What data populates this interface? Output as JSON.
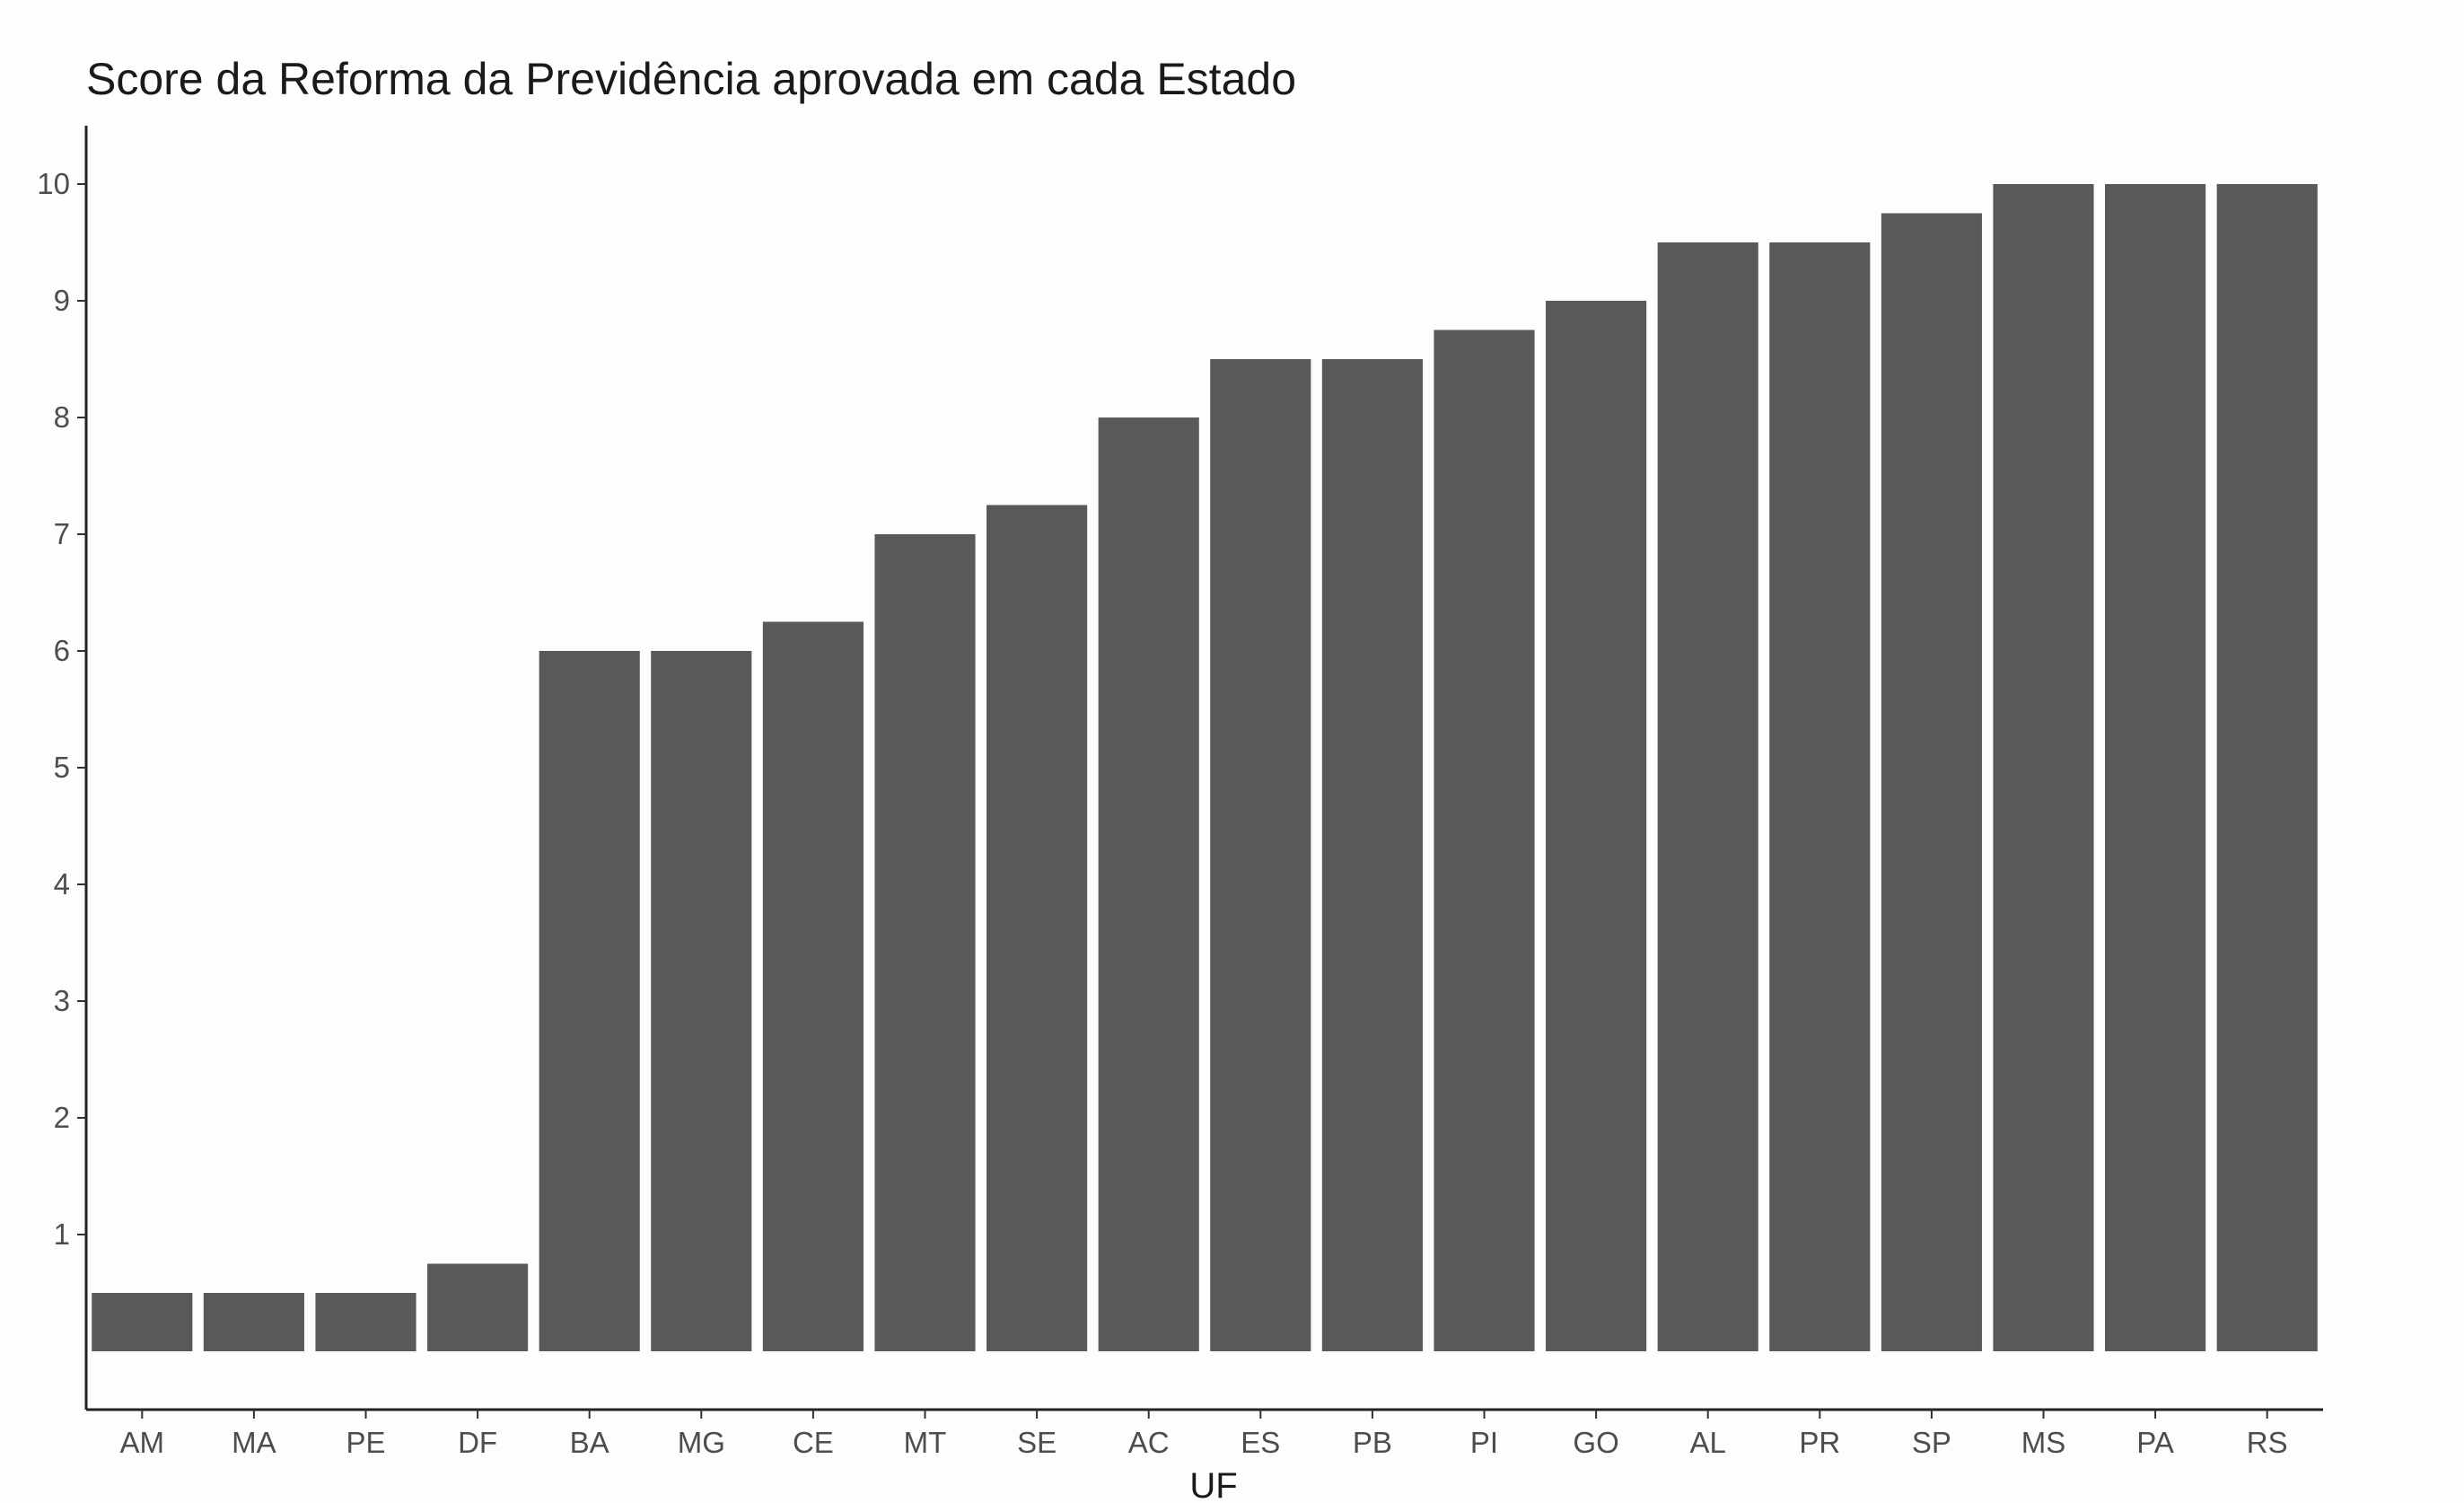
{
  "chart_data": {
    "type": "bar",
    "title": "Score da Reforma da Previdência aprovada em cada Estado",
    "xlabel": "UF",
    "ylabel": "",
    "categories": [
      "AM",
      "MA",
      "PE",
      "DF",
      "BA",
      "MG",
      "CE",
      "MT",
      "SE",
      "AC",
      "ES",
      "PB",
      "PI",
      "GO",
      "AL",
      "PR",
      "SP",
      "MS",
      "PA",
      "RS"
    ],
    "values": [
      0.5,
      0.5,
      0.5,
      0.75,
      6,
      6,
      6.25,
      7,
      7.25,
      8,
      8.5,
      8.5,
      8.75,
      9,
      9.5,
      9.5,
      9.75,
      10,
      10,
      10
    ],
    "yticks": [
      1,
      2,
      3,
      4,
      5,
      6,
      7,
      8,
      9,
      10
    ],
    "ylim": [
      -0.5,
      10.5
    ],
    "grid": false,
    "legend": "none",
    "bar_color": "#595959"
  }
}
